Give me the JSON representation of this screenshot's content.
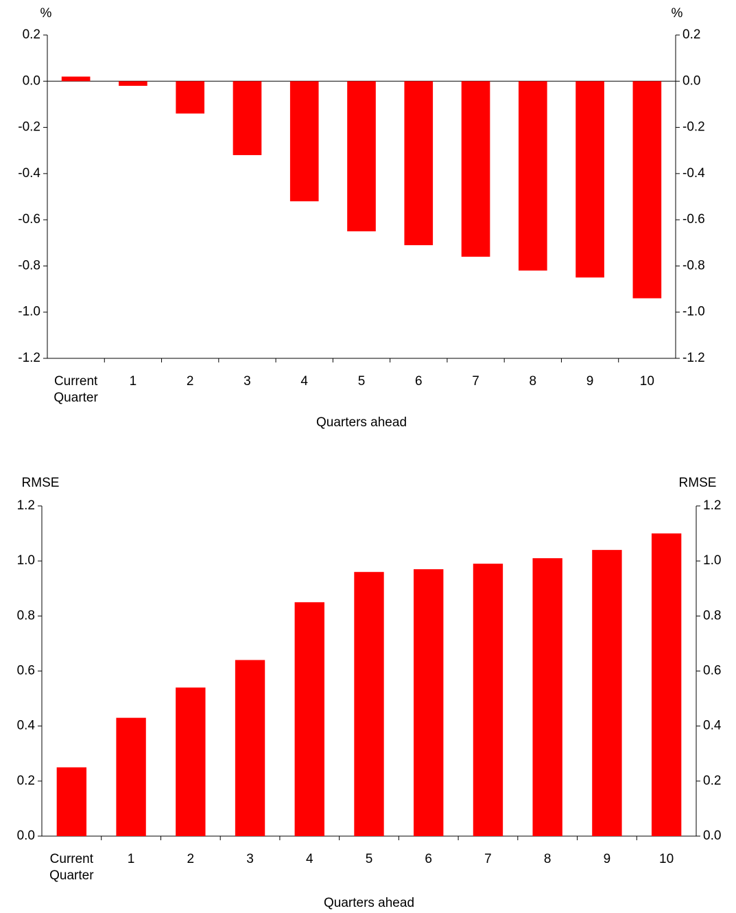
{
  "chart_data": [
    {
      "type": "bar",
      "y_label": "%",
      "y2_label": "%",
      "x_label": "Quarters ahead",
      "categories": [
        "Current Quarter",
        "1",
        "2",
        "3",
        "4",
        "5",
        "6",
        "7",
        "8",
        "9",
        "10"
      ],
      "values": [
        0.02,
        -0.02,
        -0.14,
        -0.32,
        -0.52,
        -0.65,
        -0.71,
        -0.76,
        -0.82,
        -0.85,
        -0.94
      ],
      "color": "#ff0000",
      "ylim": [
        -1.2,
        0.2
      ],
      "yticks": [
        0.2,
        {
          "value": 0,
          "label": "0.0"
        },
        -0.2,
        -0.4,
        -0.6,
        -0.8,
        {
          "value": -1,
          "label": "-1.0"
        },
        -1.2
      ]
    },
    {
      "type": "bar",
      "y_label": "RMSE",
      "y2_label": "RMSE",
      "x_label": "Quarters ahead",
      "categories": [
        "Current Quarter",
        "1",
        "2",
        "3",
        "4",
        "5",
        "6",
        "7",
        "8",
        "9",
        "10"
      ],
      "values": [
        0.25,
        0.43,
        0.54,
        0.64,
        0.85,
        0.96,
        0.97,
        0.99,
        1.01,
        1.04,
        1.1
      ],
      "color": "#ff0000",
      "ylim": [
        0,
        1.2
      ],
      "yticks": [
        {
          "value": 0,
          "label": "0.0"
        },
        0.2,
        0.4,
        0.6,
        0.8,
        {
          "value": 1,
          "label": "1.0"
        },
        1.2
      ]
    }
  ]
}
